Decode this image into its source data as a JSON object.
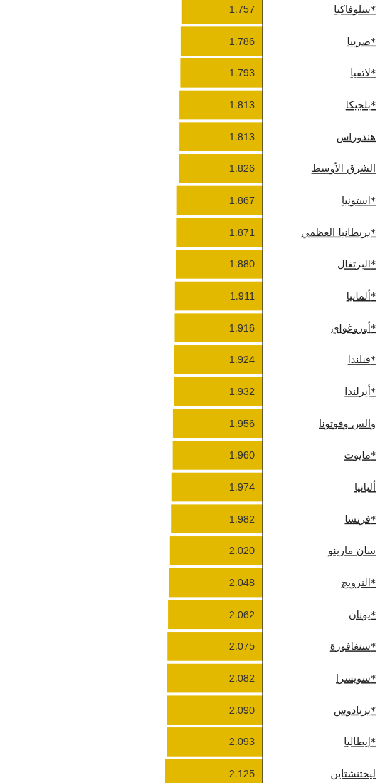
{
  "chart_data": {
    "type": "bar",
    "orientation": "horizontal",
    "categories": [
      "سلوفاكيا*",
      "صربيا*",
      "لاتفيا*",
      "بلجيكا*",
      "هندوراس",
      "الشرق الأوسط",
      "استونيا*",
      "بريطانيا العظمي*",
      "البرتغال*",
      "ألمانيا*",
      "أوروغواي*",
      "فنلندا*",
      "أيرلندا*",
      "والس وفوتونا",
      "مايوت*",
      "ألبانيا",
      "فرنسا*",
      "سان مارينو",
      "النرويج*",
      "يونان*",
      "سنغافورة*",
      "سويسرا*",
      "بربادوس*",
      "إيطاليا*",
      "ليختنشتاين"
    ],
    "values": [
      1.757,
      1.786,
      1.793,
      1.813,
      1.813,
      1.826,
      1.867,
      1.871,
      1.88,
      1.911,
      1.916,
      1.924,
      1.932,
      1.956,
      1.96,
      1.974,
      1.982,
      2.02,
      2.048,
      2.062,
      2.075,
      2.082,
      2.09,
      2.093,
      2.125
    ],
    "value_labels": [
      "1.757",
      "1.786",
      "1.793",
      "1.813",
      "1.813",
      "1.826",
      "1.867",
      "1.871",
      "1.880",
      "1.911",
      "1.916",
      "1.924",
      "1.932",
      "1.956",
      "1.960",
      "1.974",
      "1.982",
      "2.020",
      "2.048",
      "2.062",
      "2.075",
      "2.082",
      "2.090",
      "2.093",
      "2.125"
    ],
    "color": "#e3b900",
    "tick_labels": "y"
  }
}
